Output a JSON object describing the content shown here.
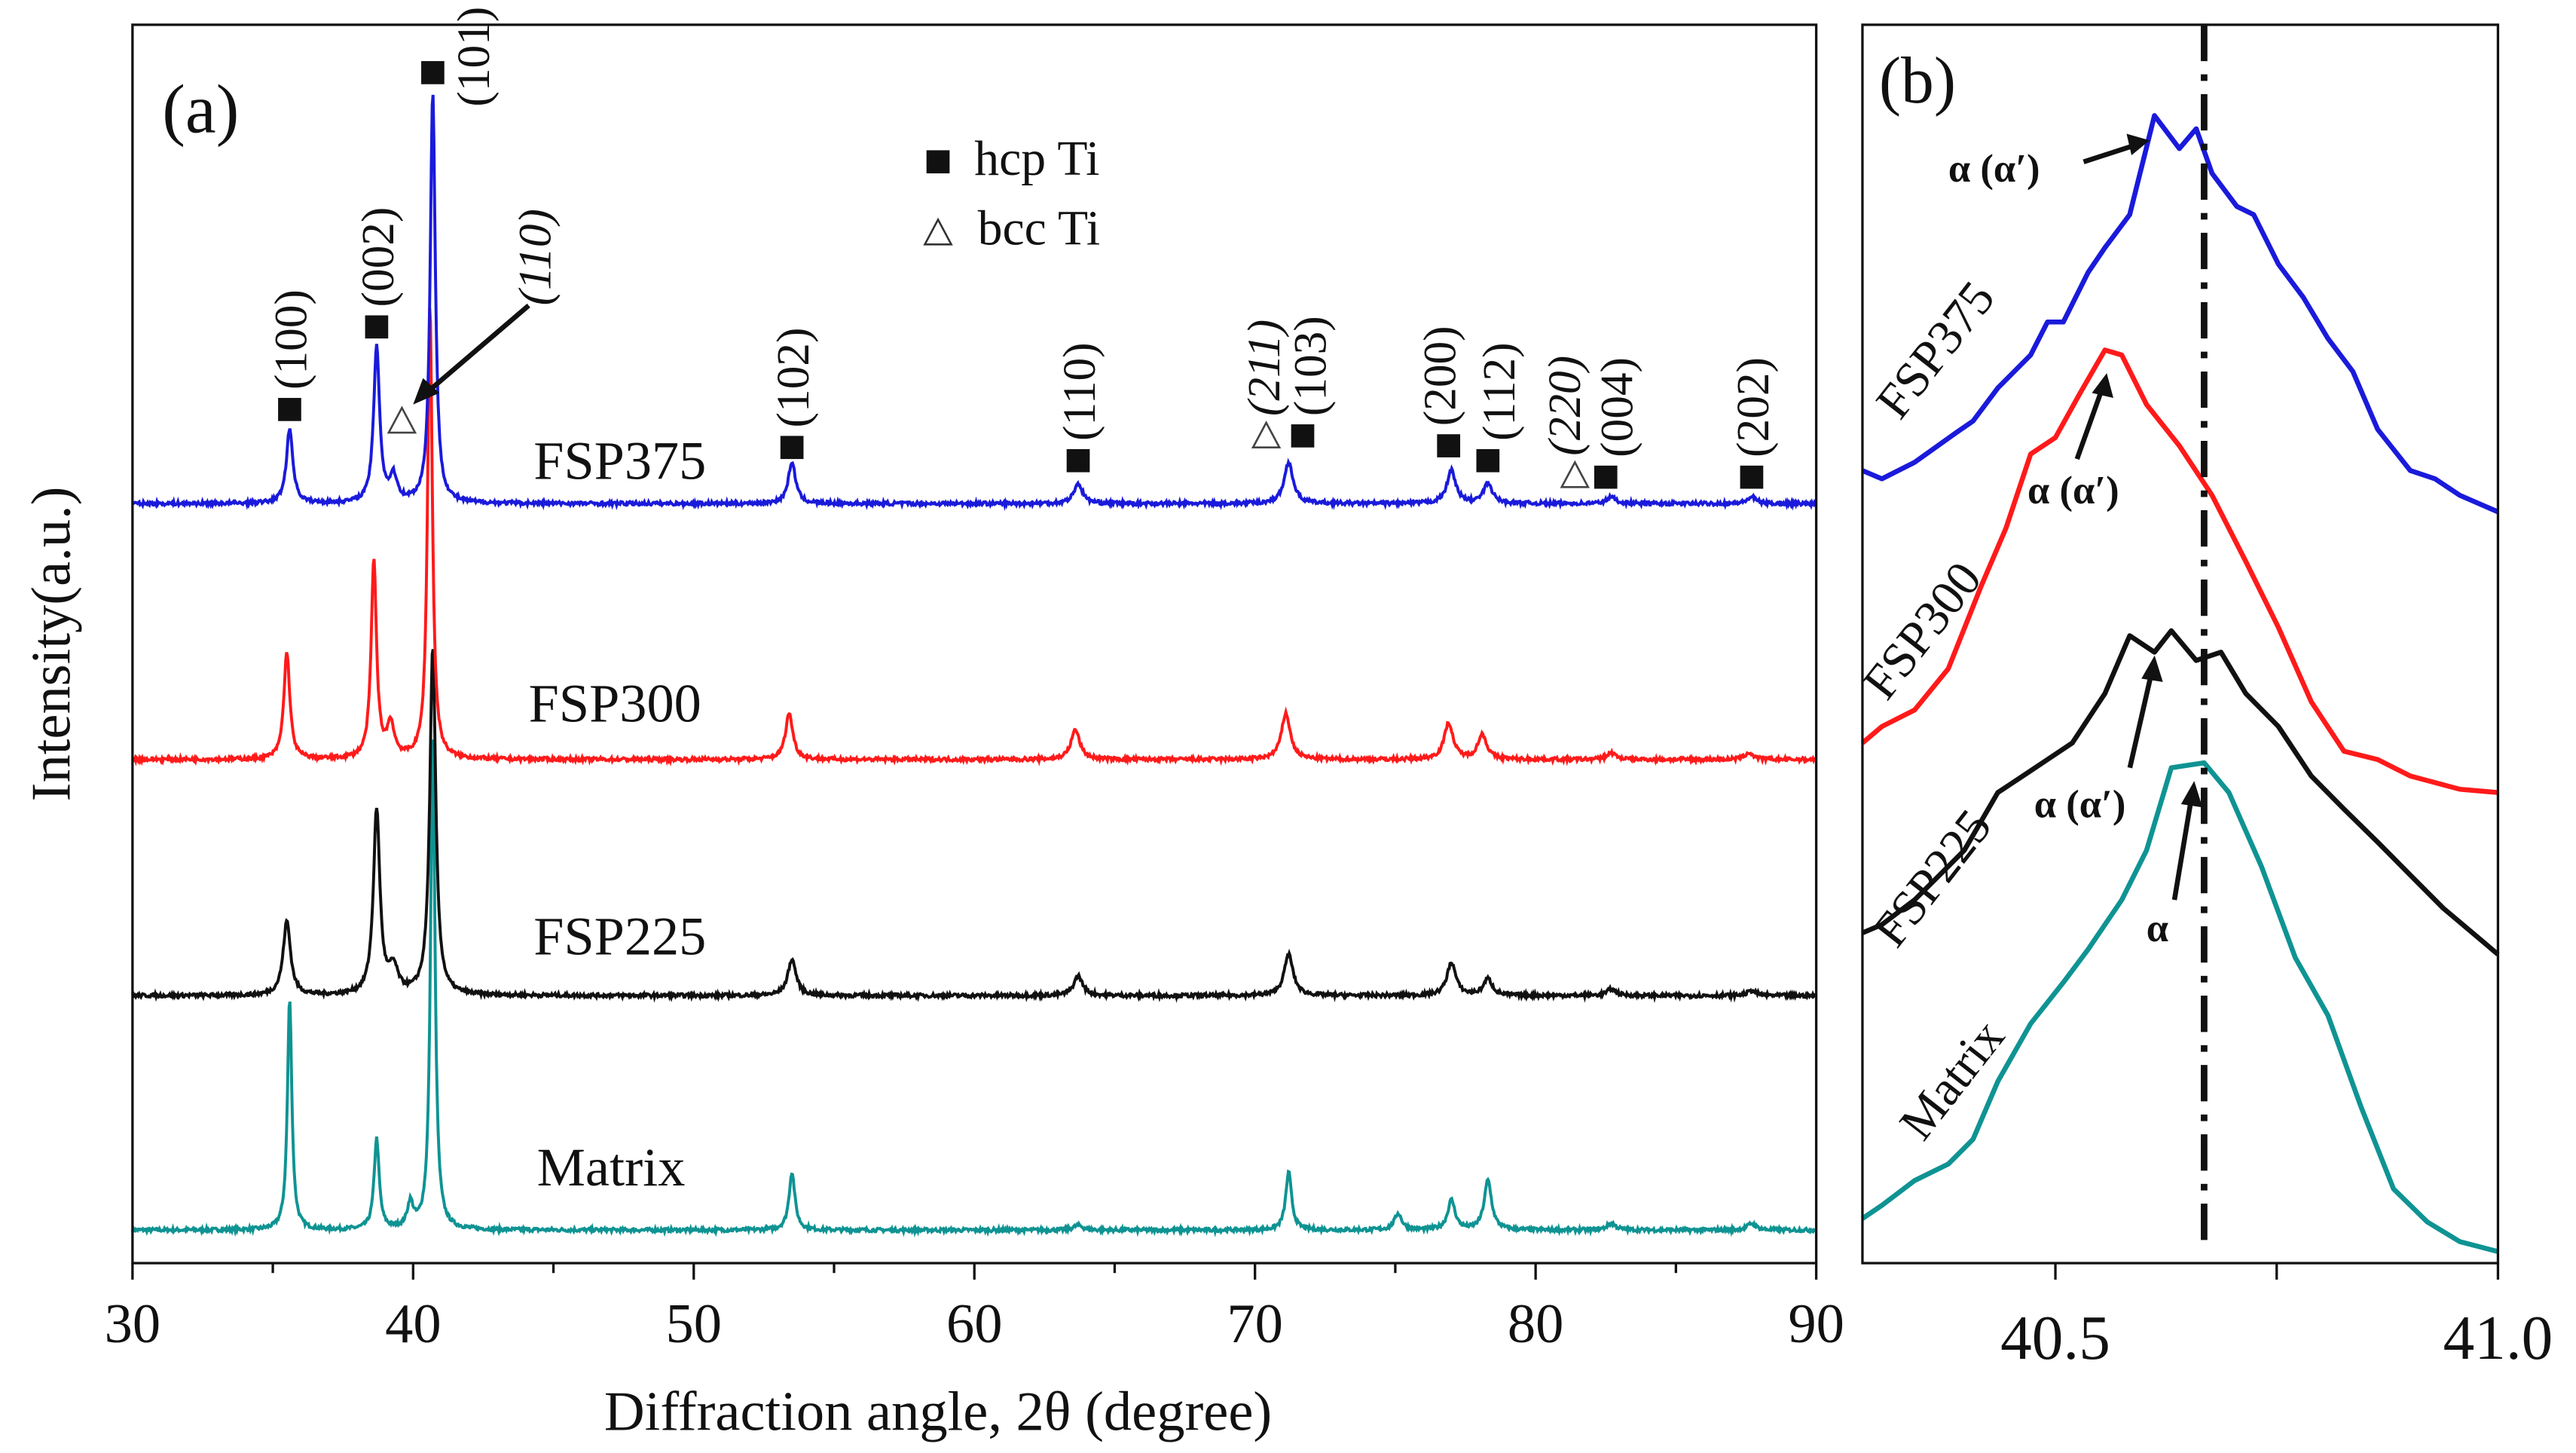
{
  "chart_data": [
    {
      "panel_label": "(a)",
      "type": "line",
      "xlabel": "Diffraction angle, 2θ (degree)",
      "ylabel": "Intensity(a.u.)",
      "xlim": [
        30,
        90
      ],
      "ylim": [
        0,
        750
      ],
      "x_ticks": [
        "30",
        "40",
        "50",
        "60",
        "70",
        "80",
        "90"
      ],
      "legend": {
        "position": "top-center",
        "entries": [
          {
            "symbol": "filled-square",
            "label": "hcp Ti"
          },
          {
            "symbol": "open-triangle",
            "label": "bcc Ti"
          }
        ]
      },
      "series": [
        {
          "name": "FSP375",
          "color": "#1a1adb",
          "baseline": 460,
          "peaks": [
            [
              35.6,
              45,
              0.22
            ],
            [
              38.7,
              95,
              0.2
            ],
            [
              39.3,
              15,
              0.25
            ],
            [
              40.7,
              250,
              0.17
            ],
            [
              53.5,
              25,
              0.25
            ],
            [
              63.7,
              12,
              0.3
            ],
            [
              71.2,
              25,
              0.3
            ],
            [
              77.0,
              20,
              0.3
            ],
            [
              78.3,
              12,
              0.3
            ],
            [
              82.7,
              4,
              0.3
            ],
            [
              87.7,
              4,
              0.3
            ]
          ]
        },
        {
          "name": "FSP300",
          "color": "#ff1a1a",
          "baseline": 305,
          "peaks": [
            [
              35.5,
              65,
              0.2
            ],
            [
              38.6,
              120,
              0.18
            ],
            [
              39.2,
              20,
              0.25
            ],
            [
              40.6,
              275,
              0.16
            ],
            [
              53.4,
              28,
              0.25
            ],
            [
              63.6,
              18,
              0.3
            ],
            [
              71.1,
              28,
              0.3
            ],
            [
              76.9,
              22,
              0.3
            ],
            [
              78.1,
              15,
              0.3
            ],
            [
              82.7,
              4,
              0.3
            ],
            [
              87.6,
              4,
              0.3
            ]
          ]
        },
        {
          "name": "FSP225",
          "color": "#111111",
          "baseline": 162,
          "peaks": [
            [
              35.5,
              45,
              0.25
            ],
            [
              38.7,
              112,
              0.22
            ],
            [
              39.3,
              15,
              0.3
            ],
            [
              40.7,
              210,
              0.2
            ],
            [
              53.5,
              22,
              0.28
            ],
            [
              63.7,
              12,
              0.3
            ],
            [
              71.2,
              25,
              0.3
            ],
            [
              77.0,
              20,
              0.3
            ],
            [
              78.3,
              10,
              0.3
            ],
            [
              82.7,
              4,
              0.3
            ],
            [
              87.7,
              3,
              0.3
            ]
          ]
        },
        {
          "name": "Matrix",
          "color": "#0f9393",
          "baseline": 20,
          "peaks": [
            [
              35.6,
              140,
              0.15
            ],
            [
              38.7,
              55,
              0.17
            ],
            [
              39.9,
              15,
              0.2
            ],
            [
              40.7,
              300,
              0.15
            ],
            [
              53.5,
              35,
              0.2
            ],
            [
              63.7,
              3,
              0.3
            ],
            [
              71.2,
              35,
              0.2
            ],
            [
              75.1,
              10,
              0.25
            ],
            [
              77.0,
              18,
              0.25
            ],
            [
              78.3,
              30,
              0.25
            ],
            [
              82.7,
              4,
              0.3
            ],
            [
              87.7,
              4,
              0.3
            ]
          ]
        }
      ],
      "annotations": [
        {
          "phase": "hcp",
          "label": "(100)",
          "x": 35.6,
          "italic": false
        },
        {
          "phase": "hcp",
          "label": "(002)",
          "x": 38.7,
          "italic": false
        },
        {
          "phase": "hcp",
          "label": "(101)",
          "x": 40.7,
          "italic": false
        },
        {
          "phase": "bcc",
          "label": "(110)",
          "x": 39.6,
          "italic": true
        },
        {
          "phase": "hcp",
          "label": "(102)",
          "x": 53.5,
          "italic": false
        },
        {
          "phase": "hcp",
          "label": "(110)",
          "x": 63.7,
          "italic": false
        },
        {
          "phase": "bcc",
          "label": "(211)",
          "x": 70.4,
          "italic": true
        },
        {
          "phase": "hcp",
          "label": "(103)",
          "x": 71.7,
          "italic": false
        },
        {
          "phase": "hcp",
          "label": "(200)",
          "x": 76.9,
          "italic": false
        },
        {
          "phase": "hcp",
          "label": "(112)",
          "x": 78.3,
          "italic": false
        },
        {
          "phase": "bcc",
          "label": "(220)",
          "x": 81.4,
          "italic": true
        },
        {
          "phase": "hcp",
          "label": "(004)",
          "x": 82.5,
          "italic": false
        },
        {
          "phase": "hcp",
          "label": "(202)",
          "x": 87.7,
          "italic": false
        }
      ]
    },
    {
      "panel_label": "(b)",
      "type": "line",
      "xlim": [
        40.282,
        41.0
      ],
      "ylim": [
        0,
        750
      ],
      "x_ticks": [
        "40.5",
        "41.0"
      ],
      "reference_line_x": 40.668,
      "series": [
        {
          "name": "FSP375",
          "color": "#1a1adb",
          "x": [
            40.282,
            40.304,
            40.341,
            40.388,
            40.407,
            40.435,
            40.472,
            40.491,
            40.509,
            40.537,
            40.556,
            40.584,
            40.612,
            40.64,
            40.659,
            40.677,
            40.705,
            40.724,
            40.752,
            40.78,
            40.808,
            40.836,
            40.864,
            40.901,
            40.929,
            40.957,
            41.0
          ],
          "y": [
            480,
            475,
            485,
            503,
            510,
            530,
            550,
            570,
            570,
            600,
            615,
            635,
            695,
            675,
            687,
            660,
            640,
            635,
            605,
            585,
            560,
            540,
            505,
            480,
            475,
            465,
            455
          ],
          "peak_label": "α (α′)"
        },
        {
          "name": "FSP300",
          "color": "#ff1a1a",
          "x": [
            40.282,
            40.304,
            40.341,
            40.379,
            40.416,
            40.444,
            40.472,
            40.5,
            40.528,
            40.556,
            40.575,
            40.603,
            40.64,
            40.677,
            40.715,
            40.752,
            40.789,
            40.826,
            40.864,
            40.901,
            40.957,
            41.0
          ],
          "y": [
            315,
            325,
            335,
            360,
            410,
            445,
            490,
            500,
            527,
            553,
            550,
            520,
            495,
            465,
            425,
            385,
            340,
            310,
            305,
            295,
            287,
            285
          ],
          "peak_label": "α (α′)"
        },
        {
          "name": "FSP225",
          "color": "#111111",
          "x": [
            40.282,
            40.304,
            40.341,
            40.369,
            40.397,
            40.435,
            40.463,
            40.491,
            40.519,
            40.556,
            40.584,
            40.612,
            40.631,
            40.659,
            40.687,
            40.715,
            40.752,
            40.789,
            40.826,
            40.864,
            40.901,
            40.938,
            41.0
          ],
          "y": [
            200,
            205,
            220,
            235,
            250,
            285,
            295,
            305,
            315,
            345,
            380,
            370,
            383,
            365,
            370,
            345,
            325,
            295,
            275,
            255,
            235,
            215,
            187
          ],
          "peak_label": "α (α′)"
        },
        {
          "name": "Matrix",
          "color": "#0f9393",
          "x": [
            40.282,
            40.304,
            40.341,
            40.379,
            40.407,
            40.435,
            40.472,
            40.509,
            40.537,
            40.575,
            40.603,
            40.631,
            40.668,
            40.696,
            40.733,
            40.771,
            40.808,
            40.845,
            40.882,
            40.92,
            40.957,
            41.0
          ],
          "y": [
            27,
            35,
            50,
            60,
            75,
            110,
            145,
            170,
            190,
            220,
            250,
            300,
            303,
            285,
            240,
            185,
            150,
            95,
            45,
            25,
            13,
            7
          ],
          "peak_label": "α"
        }
      ]
    }
  ]
}
